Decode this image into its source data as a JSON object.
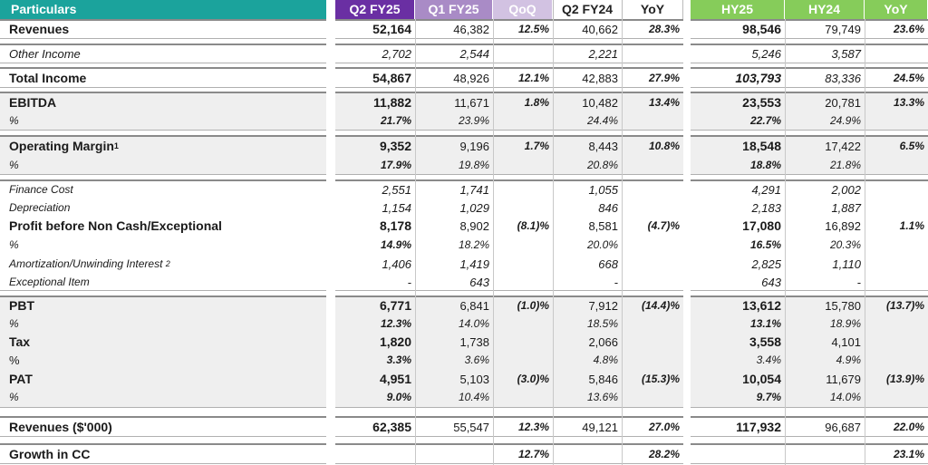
{
  "header": {
    "particulars": "Particulars",
    "cols": [
      "Q2 FY25",
      "Q1 FY25",
      "QoQ",
      "Q2 FY24",
      "YoY",
      "HY25",
      "HY24",
      "YoY"
    ]
  },
  "rows": {
    "revenues": {
      "label": "Revenues",
      "v": [
        "52,164",
        "46,382",
        "12.5%",
        "40,662",
        "28.3%",
        "98,546",
        "79,749",
        "23.6%"
      ]
    },
    "other_income": {
      "label": "Other Income",
      "v": [
        "2,702",
        "2,544",
        "",
        "2,221",
        "",
        "5,246",
        "3,587",
        ""
      ]
    },
    "total_income": {
      "label": "Total Income",
      "v": [
        "54,867",
        "48,926",
        "12.1%",
        "42,883",
        "27.9%",
        "103,793",
        "83,336",
        "24.5%"
      ]
    },
    "ebitda": {
      "label": "EBITDA",
      "v": [
        "11,882",
        "11,671",
        "1.8%",
        "10,482",
        "13.4%",
        "23,553",
        "20,781",
        "13.3%"
      ]
    },
    "ebitda_pct": {
      "label": "%",
      "v": [
        "21.7%",
        "23.9%",
        "",
        "24.4%",
        "",
        "22.7%",
        "24.9%",
        ""
      ]
    },
    "op_margin": {
      "label": "Operating Margin",
      "sup": "1",
      "v": [
        "9,352",
        "9,196",
        "1.7%",
        "8,443",
        "10.8%",
        "18,548",
        "17,422",
        "6.5%"
      ]
    },
    "op_margin_pct": {
      "label": "%",
      "v": [
        "17.9%",
        "19.8%",
        "",
        "20.8%",
        "",
        "18.8%",
        "21.8%",
        ""
      ]
    },
    "finance_cost": {
      "label": "Finance Cost",
      "v": [
        "2,551",
        "1,741",
        "",
        "1,055",
        "",
        "4,291",
        "2,002",
        ""
      ]
    },
    "depreciation": {
      "label": "Depreciation",
      "v": [
        "1,154",
        "1,029",
        "",
        "846",
        "",
        "2,183",
        "1,887",
        ""
      ]
    },
    "pbnce": {
      "label": "Profit before Non Cash/Exceptional",
      "v": [
        "8,178",
        "8,902",
        "(8.1)%",
        "8,581",
        "(4.7)%",
        "17,080",
        "16,892",
        "1.1%"
      ]
    },
    "pbnce_pct": {
      "label": "%",
      "v": [
        "14.9%",
        "18.2%",
        "",
        "20.0%",
        "",
        "16.5%",
        "20.3%",
        ""
      ]
    },
    "amortization": {
      "label": "Amortization/Unwinding Interest",
      "sup": "2",
      "v": [
        "1,406",
        "1,419",
        "",
        "668",
        "",
        "2,825",
        "1,110",
        ""
      ]
    },
    "exceptional": {
      "label": "Exceptional Item",
      "v": [
        "-",
        "643",
        "",
        "-",
        "",
        "643",
        "-",
        ""
      ]
    },
    "pbt": {
      "label": "PBT",
      "v": [
        "6,771",
        "6,841",
        "(1.0)%",
        "7,912",
        "(14.4)%",
        "13,612",
        "15,780",
        "(13.7)%"
      ]
    },
    "pbt_pct": {
      "label": "%",
      "v": [
        "12.3%",
        "14.0%",
        "",
        "18.5%",
        "",
        "13.1%",
        "18.9%",
        ""
      ]
    },
    "tax": {
      "label": "Tax",
      "v": [
        "1,820",
        "1,738",
        "",
        "2,066",
        "",
        "3,558",
        "4,101",
        ""
      ]
    },
    "tax_pct": {
      "label": "%",
      "v": [
        "3.3%",
        "3.6%",
        "",
        "4.8%",
        "",
        "3.4%",
        "4.9%",
        ""
      ]
    },
    "pat": {
      "label": "PAT",
      "v": [
        "4,951",
        "5,103",
        "(3.0)%",
        "5,846",
        "(15.3)%",
        "10,054",
        "11,679",
        "(13.9)%"
      ]
    },
    "pat_pct": {
      "label": "%",
      "v": [
        "9.0%",
        "10.4%",
        "",
        "13.6%",
        "",
        "9.7%",
        "14.0%",
        ""
      ]
    },
    "revenues_usd": {
      "label": "Revenues ($'000)",
      "v": [
        "62,385",
        "55,547",
        "12.3%",
        "49,121",
        "27.0%",
        "117,932",
        "96,687",
        "22.0%"
      ]
    },
    "growth_cc": {
      "label": "Growth in CC",
      "v": [
        "",
        "",
        "12.7%",
        "",
        "28.2%",
        "",
        "",
        "23.1%"
      ]
    }
  },
  "colors": {
    "teal": "#1ba39c",
    "purple": "#6a2fa3",
    "lavender": "#a98bc6",
    "green": "#86cc5a"
  }
}
